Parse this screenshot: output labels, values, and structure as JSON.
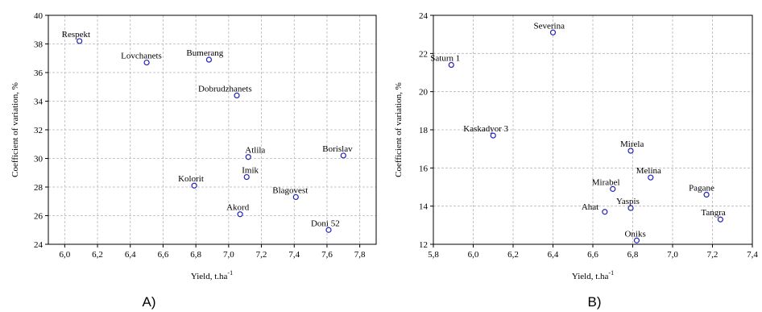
{
  "chart_data": [
    {
      "type": "scatter",
      "panel_label": "A)",
      "xlabel": "Yield, t.ha",
      "xlabel_sup": "-1",
      "ylabel": "Coefficient of variation, %",
      "xlim": [
        5.9,
        7.9
      ],
      "ylim": [
        24,
        40
      ],
      "xticks": [
        6.0,
        6.2,
        6.4,
        6.6,
        6.8,
        7.0,
        7.2,
        7.4,
        7.6,
        7.8
      ],
      "yticks": [
        24,
        26,
        28,
        30,
        32,
        34,
        36,
        38,
        40
      ],
      "points": [
        {
          "label": "Respekt",
          "x": 6.09,
          "y": 38.2
        },
        {
          "label": "Lovchanets",
          "x": 6.5,
          "y": 36.7
        },
        {
          "label": "Bumerang",
          "x": 6.88,
          "y": 36.9
        },
        {
          "label": "Dobrudzhanets",
          "x": 7.05,
          "y": 34.4
        },
        {
          "label": "Atlila",
          "x": 7.12,
          "y": 30.1
        },
        {
          "label": "Borislav",
          "x": 7.7,
          "y": 30.2
        },
        {
          "label": "Imik",
          "x": 7.11,
          "y": 28.7
        },
        {
          "label": "Kolorit",
          "x": 6.79,
          "y": 28.1
        },
        {
          "label": "Blagovest",
          "x": 7.41,
          "y": 27.3
        },
        {
          "label": "Akord",
          "x": 7.07,
          "y": 26.1
        },
        {
          "label": "Doni 52",
          "x": 7.61,
          "y": 25.0
        }
      ]
    },
    {
      "type": "scatter",
      "panel_label": "B)",
      "xlabel": "Yield, t.ha",
      "xlabel_sup": "-1",
      "ylabel": "Coefficient of variation, %",
      "xlim": [
        5.8,
        7.4
      ],
      "ylim": [
        12,
        24
      ],
      "xticks": [
        5.8,
        6.0,
        6.2,
        6.4,
        6.6,
        6.8,
        7.0,
        7.2,
        7.4
      ],
      "yticks": [
        12,
        14,
        16,
        18,
        20,
        22,
        24
      ],
      "points": [
        {
          "label": "Severina",
          "x": 6.4,
          "y": 23.1
        },
        {
          "label": "Saturn 1",
          "x": 5.89,
          "y": 21.4
        },
        {
          "label": "Kaskadyor 3",
          "x": 6.1,
          "y": 17.7
        },
        {
          "label": "Mirela",
          "x": 6.79,
          "y": 16.9
        },
        {
          "label": "Melina",
          "x": 6.89,
          "y": 15.5
        },
        {
          "label": "Mirabel",
          "x": 6.7,
          "y": 14.9
        },
        {
          "label": "Pagane",
          "x": 7.17,
          "y": 14.6
        },
        {
          "label": "Yaspis",
          "x": 6.79,
          "y": 13.9
        },
        {
          "label": "Ahat",
          "x": 6.66,
          "y": 13.7
        },
        {
          "label": "Tangra",
          "x": 7.24,
          "y": 13.3
        },
        {
          "label": "Oniks",
          "x": 6.82,
          "y": 12.2
        }
      ]
    }
  ]
}
